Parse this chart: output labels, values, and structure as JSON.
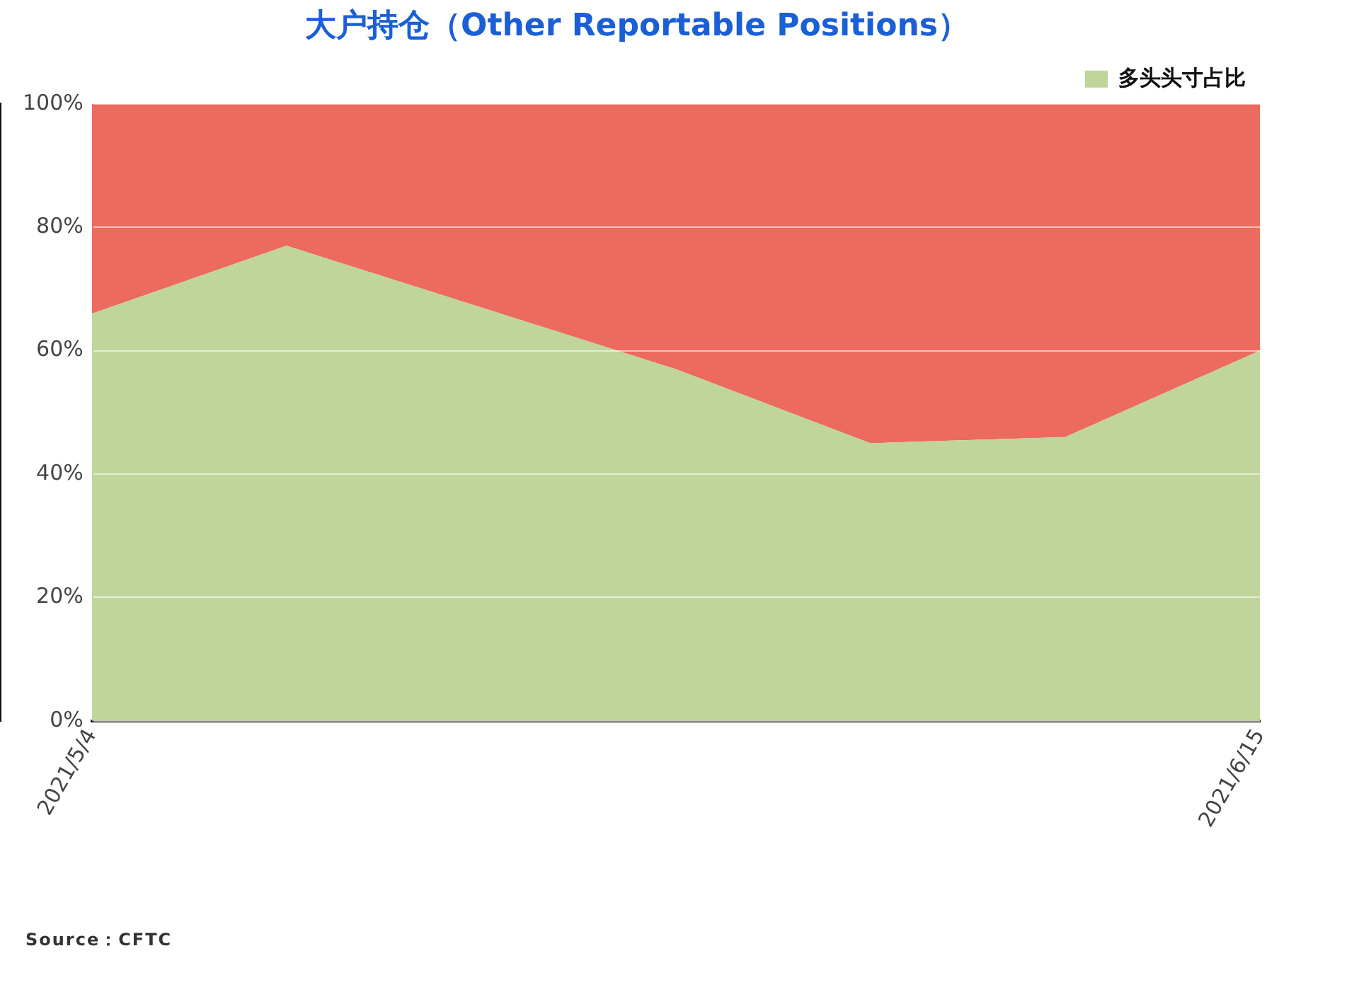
{
  "chart_data": {
    "type": "area",
    "title": "大户持仓（Other Reportable Positions）",
    "categories": [
      "2021/5/4",
      null,
      null,
      null,
      null,
      null,
      "2021/6/15"
    ],
    "series": [
      {
        "name": "多头头寸占比",
        "color": "#bfd599",
        "values": [
          66,
          77,
          67,
          57,
          45,
          46,
          60
        ]
      },
      {
        "color": "#ec6a5e",
        "values": [
          34,
          23,
          33,
          43,
          55,
          54,
          40
        ]
      }
    ],
    "stacked": true,
    "ylim": [
      0,
      100
    ],
    "yticks": [
      {
        "value": 0,
        "label": "0%"
      },
      {
        "value": 20,
        "label": "20%"
      },
      {
        "value": 40,
        "label": "40%"
      },
      {
        "value": 60,
        "label": "60%"
      },
      {
        "value": 80,
        "label": "80%"
      },
      {
        "value": 100,
        "label": "100%"
      }
    ],
    "grid": "y",
    "legend": "top right",
    "annotations": [
      "Source：CFTC"
    ]
  }
}
